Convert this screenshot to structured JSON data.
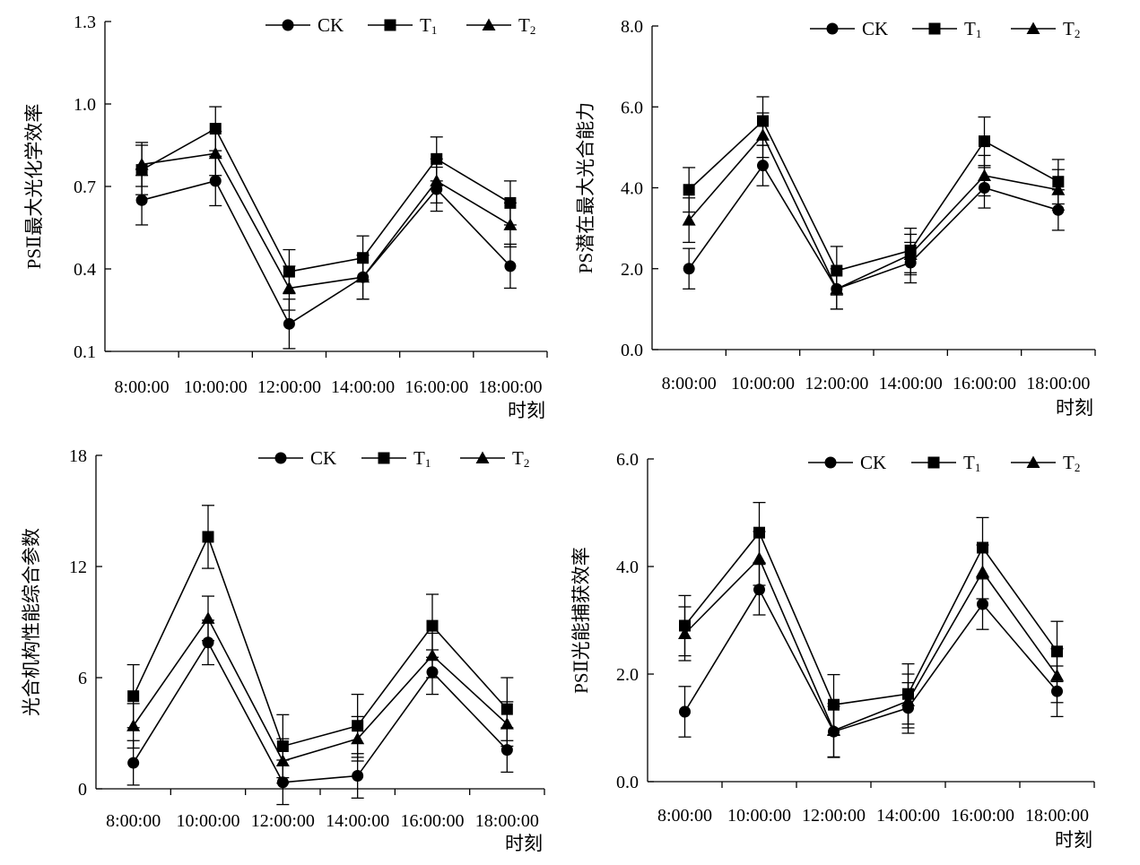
{
  "chart_data": [
    {
      "type": "line",
      "ylabel": "PSⅡ最大光化学效率",
      "xlabel": "时刻",
      "categories": [
        "8:00:00",
        "10:00:00",
        "12:00:00",
        "14:00:00",
        "16:00:00",
        "18:00:00"
      ],
      "ylim": [
        0.1,
        1.3
      ],
      "yticks": [
        "0.1",
        "0.4",
        "0.7",
        "1.0",
        "1.3"
      ],
      "legend_position": "top",
      "series": [
        {
          "name": "CK",
          "marker": "circle",
          "values": [
            0.65,
            0.72,
            0.2,
            0.37,
            0.69,
            0.41
          ],
          "errors": [
            0.09,
            0.09,
            0.09,
            0.08,
            0.08,
            0.08
          ]
        },
        {
          "name": "T",
          "sub": "1",
          "marker": "square",
          "values": [
            0.76,
            0.91,
            0.39,
            0.44,
            0.8,
            0.64
          ],
          "errors": [
            0.09,
            0.08,
            0.08,
            0.08,
            0.08,
            0.08
          ]
        },
        {
          "name": "T",
          "sub": "2",
          "marker": "triangle",
          "values": [
            0.78,
            0.82,
            0.33,
            0.37,
            0.72,
            0.56
          ],
          "errors": [
            0.08,
            0.08,
            0.08,
            0.08,
            0.08,
            0.08
          ]
        }
      ]
    },
    {
      "type": "line",
      "ylabel": "PS潜在最大光合能力",
      "xlabel": "时刻",
      "categories": [
        "8:00:00",
        "10:00:00",
        "12:00:00",
        "14:00:00",
        "16:00:00",
        "18:00:00"
      ],
      "ylim": [
        0,
        8
      ],
      "yticks": [
        "0.0",
        "2.0",
        "4.0",
        "6.0",
        "8.0"
      ],
      "legend_position": "top",
      "series": [
        {
          "name": "CK",
          "marker": "circle",
          "values": [
            2.0,
            4.55,
            1.5,
            2.15,
            4.0,
            3.45
          ],
          "errors": [
            0.5,
            0.5,
            0.5,
            0.5,
            0.5,
            0.5
          ]
        },
        {
          "name": "T",
          "sub": "1",
          "marker": "square",
          "values": [
            3.95,
            5.65,
            1.95,
            2.45,
            5.15,
            4.15
          ],
          "errors": [
            0.55,
            0.6,
            0.6,
            0.55,
            0.6,
            0.55
          ]
        },
        {
          "name": "T",
          "sub": "2",
          "marker": "triangle",
          "values": [
            3.2,
            5.3,
            1.5,
            2.35,
            4.3,
            3.95
          ],
          "errors": [
            0.55,
            0.55,
            0.5,
            0.5,
            0.5,
            0.5
          ]
        }
      ]
    },
    {
      "type": "line",
      "ylabel": "光合机构性能综合参数",
      "xlabel": "时刻",
      "categories": [
        "8:00:00",
        "10:00:00",
        "12:00:00",
        "14:00:00",
        "16:00:00",
        "18:00:00"
      ],
      "ylim": [
        0,
        18
      ],
      "yticks": [
        "0",
        "6",
        "12",
        "18"
      ],
      "legend_position": "top",
      "series": [
        {
          "name": "CK",
          "marker": "circle",
          "values": [
            1.4,
            7.9,
            0.35,
            0.7,
            6.3,
            2.1
          ],
          "errors": [
            1.2,
            1.2,
            1.2,
            1.2,
            1.2,
            1.2
          ]
        },
        {
          "name": "T",
          "sub": "1",
          "marker": "square",
          "values": [
            5.0,
            13.6,
            2.3,
            3.4,
            8.8,
            4.3
          ],
          "errors": [
            1.7,
            1.7,
            1.7,
            1.7,
            1.7,
            1.7
          ]
        },
        {
          "name": "T",
          "sub": "2",
          "marker": "triangle",
          "values": [
            3.4,
            9.2,
            1.5,
            2.7,
            7.2,
            3.5
          ],
          "errors": [
            1.2,
            1.2,
            1.2,
            1.2,
            1.2,
            1.2
          ]
        }
      ]
    },
    {
      "type": "line",
      "ylabel": "PSⅡ光能捕获效率",
      "xlabel": "时刻",
      "categories": [
        "8:00:00",
        "10:00:00",
        "12:00:00",
        "14:00:00",
        "16:00:00",
        "18:00:00"
      ],
      "ylim": [
        0,
        6
      ],
      "yticks": [
        "0.0",
        "2.0",
        "4.0",
        "6.0"
      ],
      "legend_position": "top",
      "series": [
        {
          "name": "CK",
          "marker": "circle",
          "values": [
            1.3,
            3.57,
            0.93,
            1.37,
            3.3,
            1.68
          ],
          "errors": [
            0.47,
            0.47,
            0.47,
            0.47,
            0.47,
            0.47
          ]
        },
        {
          "name": "T",
          "sub": "1",
          "marker": "square",
          "values": [
            2.9,
            4.63,
            1.43,
            1.63,
            4.35,
            2.42
          ],
          "errors": [
            0.56,
            0.56,
            0.56,
            0.56,
            0.56,
            0.56
          ]
        },
        {
          "name": "T",
          "sub": "2",
          "marker": "triangle",
          "values": [
            2.75,
            4.15,
            0.95,
            1.5,
            3.9,
            1.97
          ],
          "errors": [
            0.5,
            0.5,
            0.5,
            0.5,
            0.5,
            0.5
          ]
        }
      ]
    }
  ]
}
